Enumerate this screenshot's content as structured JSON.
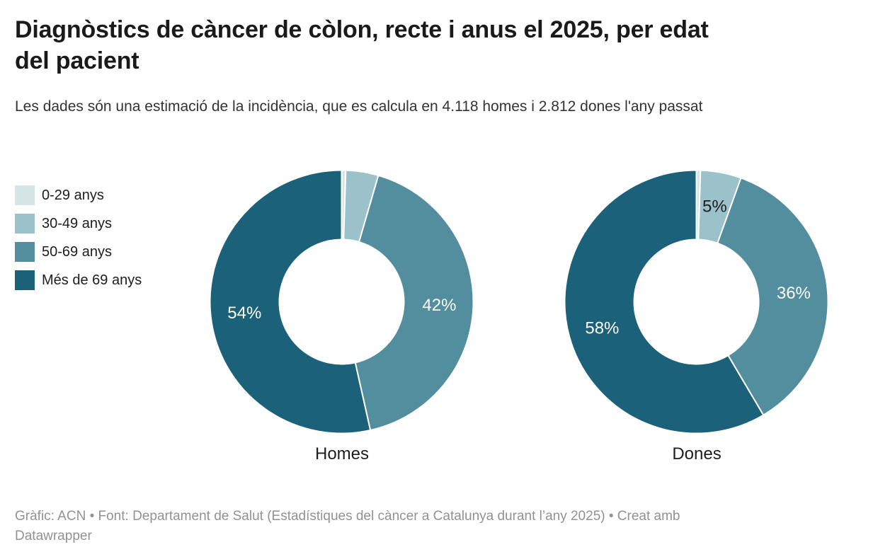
{
  "header": {
    "title": "Diagnòstics de càncer de còlon, recte i anus el 2025, per edat del pacient",
    "subtitle": "Les dades són una estimació de la incidència, que es calcula en 4.118 homes i 2.812 dones l'any passat"
  },
  "legend": {
    "items": [
      {
        "label": "0-29 anys",
        "color": "#d5e4e5"
      },
      {
        "label": "30-49 anys",
        "color": "#9bc1ca"
      },
      {
        "label": "50-69 anys",
        "color": "#538e9e"
      },
      {
        "label": "Més de 69 anys",
        "color": "#1a6179"
      }
    ]
  },
  "chart_data": {
    "type": "pie",
    "subtype": "donut",
    "title": "Diagnòstics de càncer de còlon, recte i anus el 2025, per edat del pacient",
    "categories": [
      "0-29 anys",
      "30-49 anys",
      "50-69 anys",
      "Més de 69 anys"
    ],
    "legend_position": "top-left",
    "charts": [
      {
        "name": "Homes",
        "slices": [
          {
            "category": "0-29 anys",
            "pct": 0.5,
            "label": "",
            "label_color": "#1d1d1d"
          },
          {
            "category": "30-49 anys",
            "pct": 4,
            "label": "",
            "label_color": "#1d1d1d"
          },
          {
            "category": "50-69 anys",
            "pct": 42,
            "label": "42%",
            "label_color": "#ffffff"
          },
          {
            "category": "Més de 69 anys",
            "pct": 53.5,
            "label": "54%",
            "label_color": "#ffffff"
          }
        ]
      },
      {
        "name": "Dones",
        "slices": [
          {
            "category": "0-29 anys",
            "pct": 0.5,
            "label": "",
            "label_color": "#1d1d1d"
          },
          {
            "category": "30-49 anys",
            "pct": 5,
            "label": "5%",
            "label_color": "#1d1d1d"
          },
          {
            "category": "50-69 anys",
            "pct": 36,
            "label": "36%",
            "label_color": "#ffffff"
          },
          {
            "category": "Més de 69 anys",
            "pct": 58.5,
            "label": "58%",
            "label_color": "#ffffff"
          }
        ]
      }
    ]
  },
  "footer": {
    "line1": "Gràfic: ACN • Font: Departament de Salut (Estadístiques del càncer a Catalunya durant l’any 2025) • Creat amb",
    "line2": "Datawrapper"
  }
}
